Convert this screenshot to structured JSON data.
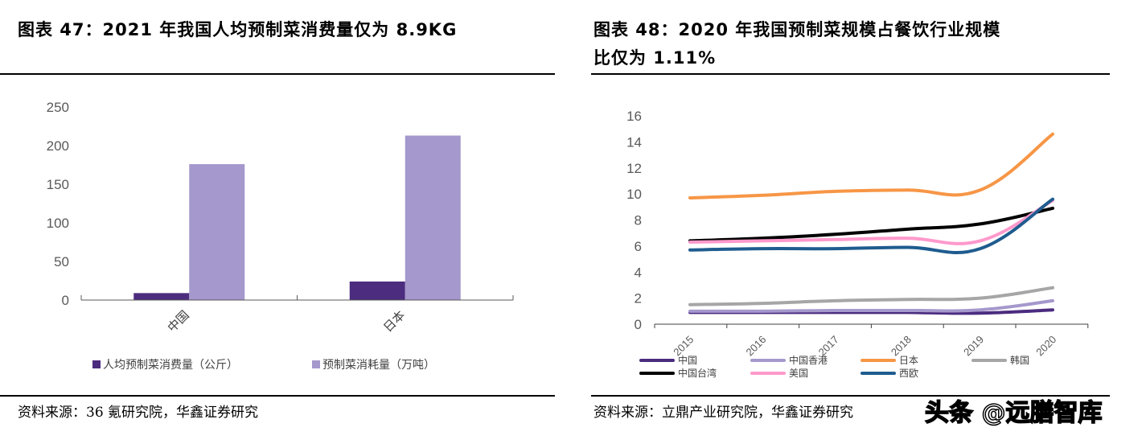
{
  "left": {
    "title": "图表 47：2021 年我国人均预制菜消费量仅为 8.9KG",
    "source": "资料来源：36 氪研究院，华鑫证券研究"
  },
  "right": {
    "title_line1": "图表 48：2020 年我国预制菜规模占餐饮行业规模",
    "title_line2": "比仅为 1.11%",
    "source": "资料来源：立鼎产业研究院，华鑫证券研究"
  },
  "watermark": "头条 @远膳智库",
  "chart_data": [
    {
      "type": "bar",
      "categories": [
        "中国",
        "日本"
      ],
      "series": [
        {
          "name": "人均预制菜消费量（公斤）",
          "color": "#4b2c7f",
          "values": [
            9,
            24
          ]
        },
        {
          "name": "预制菜消耗量（万吨）",
          "color": "#a598cc",
          "values": [
            176,
            213
          ]
        }
      ],
      "ylim": [
        0,
        250
      ],
      "yticks": [
        "0",
        "50",
        "100",
        "150",
        "200",
        "250"
      ],
      "grid": false,
      "legend": "bottom"
    },
    {
      "type": "line",
      "categories": [
        "2015",
        "2016",
        "2017",
        "2018",
        "2019",
        "2020"
      ],
      "series": [
        {
          "name": "中国",
          "color": "#4b2c7f",
          "values": [
            0.9,
            0.9,
            0.9,
            0.9,
            0.85,
            1.1
          ]
        },
        {
          "name": "中国香港",
          "color": "#a598cc",
          "values": [
            1.0,
            1.0,
            1.05,
            1.05,
            1.1,
            1.8
          ]
        },
        {
          "name": "日本",
          "color": "#f79646",
          "values": [
            9.7,
            9.9,
            10.2,
            10.3,
            10.3,
            14.6
          ]
        },
        {
          "name": "韩国",
          "color": "#a6a6a6",
          "values": [
            1.5,
            1.6,
            1.8,
            1.9,
            2.0,
            2.8
          ]
        },
        {
          "name": "中国台湾",
          "color": "#000000",
          "values": [
            6.4,
            6.6,
            6.9,
            7.3,
            7.7,
            8.9
          ]
        },
        {
          "name": "美国",
          "color": "#ff99cc",
          "values": [
            6.3,
            6.4,
            6.5,
            6.6,
            6.4,
            9.5
          ]
        },
        {
          "name": "西欧",
          "color": "#1f5c8f",
          "values": [
            5.7,
            5.8,
            5.8,
            5.9,
            5.8,
            9.6
          ]
        }
      ],
      "ylim": [
        0,
        16
      ],
      "yticks": [
        "0",
        "2",
        "4",
        "6",
        "8",
        "10",
        "12",
        "14",
        "16"
      ],
      "grid": false,
      "legend": "bottom"
    }
  ]
}
